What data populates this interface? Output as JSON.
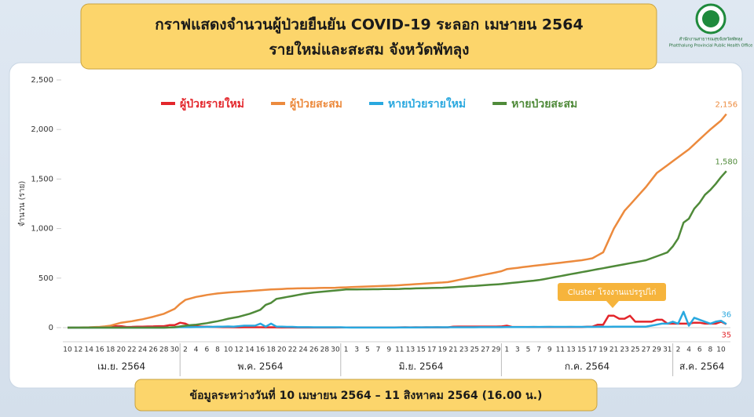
{
  "header": {
    "title_lines": [
      "กราฟแสดงจำนวนผู้ป่วยยืนยัน COVID-19 ระลอก เมษายน 2564",
      "รายใหม่และสะสม จังหวัดพัทลุง"
    ]
  },
  "logo": {
    "org_thai": "สำนักงานสาธารณสุขจังหวัดพัทลุง",
    "org_english": "Phatthalung Provincial Public Health Office"
  },
  "footer": "ข้อมูลระหว่างวันที่ 10 เมษายน 2564 – 11 สิงหาคม 2564 (16.00 น.)",
  "chart_data": {
    "type": "line",
    "y_label": "จำนวน (ราย)",
    "annotation": "Cluster โรงงานแปรรูปไก่",
    "ylim": [
      0,
      2500
    ],
    "yticks": [
      0,
      500,
      {
        "value": 1000,
        "label": "1,000"
      },
      {
        "value": 1500,
        "label": "1,500"
      },
      {
        "value": 2000,
        "label": "2,000"
      },
      {
        "value": 2500,
        "label": "2,500"
      }
    ],
    "grid": false,
    "legend": "top",
    "category_groups": [
      "เม.ย. 2564",
      "พ.ค. 2564",
      "มิ.ย. 2564",
      "ก.ค. 2564",
      "ส.ค. 2564"
    ],
    "categories": [
      "10",
      null,
      "12",
      null,
      "14",
      null,
      "16",
      null,
      "18",
      null,
      "20",
      null,
      "22",
      null,
      "24",
      null,
      "26",
      null,
      "28",
      null,
      "30",
      null,
      "2",
      null,
      "4",
      null,
      "6",
      null,
      "8",
      null,
      "10",
      null,
      "12",
      null,
      "14",
      null,
      "16",
      null,
      "18",
      null,
      "20",
      null,
      "22",
      null,
      "24",
      null,
      "26",
      null,
      "28",
      null,
      "30",
      null,
      "1",
      null,
      "3",
      null,
      "5",
      null,
      "7",
      null,
      "9",
      null,
      "11",
      null,
      "13",
      null,
      "15",
      null,
      "17",
      null,
      "19",
      null,
      "21",
      null,
      "23",
      null,
      "25",
      null,
      "27",
      null,
      "29",
      null,
      "1",
      null,
      "3",
      null,
      "5",
      null,
      "7",
      null,
      "9",
      null,
      "11",
      null,
      "13",
      null,
      "15",
      null,
      "17",
      null,
      "19",
      null,
      "21",
      null,
      "23",
      null,
      "25",
      null,
      "27",
      null,
      "29",
      null,
      "31",
      null,
      "2",
      null,
      "4",
      null,
      "6",
      null,
      "8",
      null,
      "10",
      null
    ],
    "series": [
      {
        "name": "ผู้ป่วยรายใหม่",
        "color": "#e3262b",
        "end_label": true,
        "values": [
          0,
          1,
          1,
          1,
          1,
          2,
          2,
          5,
          7,
          15,
          15,
          7,
          8,
          10,
          10,
          12,
          13,
          15,
          15,
          25,
          25,
          50,
          40,
          15,
          15,
          10,
          10,
          8,
          7,
          5,
          5,
          4,
          3,
          4,
          4,
          4,
          4,
          3,
          4,
          3,
          2,
          3,
          2,
          1,
          1,
          1,
          1,
          1,
          1,
          1,
          1,
          2,
          2,
          2,
          2,
          2,
          2,
          2,
          2,
          2,
          2,
          2,
          3,
          4,
          3,
          4,
          3,
          4,
          3,
          4,
          3,
          3,
          10,
          11,
          11,
          11,
          11,
          11,
          11,
          11,
          11,
          12,
          20,
          7,
          7,
          7,
          6,
          7,
          6,
          6,
          7,
          6,
          6,
          6,
          7,
          6,
          6,
          10,
          10,
          30,
          30,
          120,
          120,
          90,
          90,
          120,
          60,
          60,
          60,
          60,
          80,
          80,
          40,
          40,
          40,
          40,
          40,
          50,
          50,
          40,
          40,
          40,
          60,
          35
        ]
      },
      {
        "name": "ผู้ป่วยสะสม",
        "color": "#ec8a3d",
        "end_label": true,
        "values": [
          0,
          1,
          2,
          3,
          4,
          6,
          8,
          13,
          20,
          35,
          50,
          57,
          65,
          75,
          85,
          97,
          110,
          125,
          140,
          165,
          190,
          240,
          280,
          295,
          310,
          320,
          330,
          338,
          345,
          350,
          355,
          359,
          362,
          366,
          370,
          374,
          378,
          381,
          385,
          388,
          390,
          393,
          395,
          396,
          397,
          398,
          399,
          400,
          401,
          402,
          403,
          405,
          407,
          409,
          411,
          413,
          415,
          417,
          419,
          421,
          423,
          425,
          428,
          432,
          435,
          439,
          442,
          446,
          449,
          453,
          456,
          460,
          470,
          481,
          492,
          503,
          514,
          525,
          536,
          547,
          558,
          570,
          590,
          597,
          604,
          611,
          617,
          624,
          630,
          636,
          643,
          649,
          655,
          661,
          668,
          674,
          680,
          690,
          700,
          730,
          760,
          880,
          1000,
          1090,
          1180,
          1240,
          1300,
          1360,
          1420,
          1490,
          1560,
          1600,
          1640,
          1680,
          1720,
          1760,
          1800,
          1850,
          1900,
          1950,
          2000,
          2045,
          2090,
          2156
        ],
        "value_labels": [
          null,
          null,
          null,
          null,
          null,
          null,
          null,
          null,
          null,
          null,
          null,
          null,
          null,
          null,
          null,
          null,
          null,
          null,
          null,
          null,
          null,
          null,
          null,
          null,
          null,
          null,
          null,
          null,
          null,
          null,
          null,
          null,
          null,
          null,
          null,
          null,
          null,
          null,
          null,
          null,
          null,
          null,
          null,
          null,
          null,
          null,
          null,
          null,
          null,
          null,
          null,
          null,
          null,
          null,
          null,
          null,
          null,
          null,
          null,
          null,
          null,
          null,
          null,
          null,
          null,
          null,
          null,
          null,
          null,
          null,
          null,
          null,
          null,
          null,
          null,
          null,
          null,
          null,
          null,
          null,
          null,
          null,
          null,
          null,
          null,
          null,
          null,
          null,
          null,
          null,
          null,
          null,
          null,
          null,
          null,
          null,
          null,
          null,
          null,
          null,
          null,
          null,
          null,
          null,
          null,
          null,
          null,
          null,
          null,
          null,
          null,
          null,
          null,
          null,
          null,
          null,
          null,
          null,
          null,
          null,
          null,
          null,
          null,
          "2,156"
        ]
      },
      {
        "name": "หายป่วยรายใหม่",
        "color": "#29a8df",
        "end_label": true,
        "values": [
          0,
          0,
          0,
          0,
          0,
          0,
          0,
          0,
          0,
          0,
          0,
          0,
          0,
          0,
          0,
          0,
          0,
          0,
          0,
          2,
          3,
          5,
          5,
          5,
          6,
          6,
          8,
          8,
          10,
          10,
          12,
          10,
          15,
          20,
          20,
          20,
          40,
          10,
          40,
          10,
          10,
          8,
          8,
          5,
          5,
          5,
          4,
          4,
          4,
          4,
          4,
          4,
          2,
          1,
          1,
          1,
          1,
          1,
          1,
          1,
          1,
          1,
          2,
          2,
          2,
          2,
          3,
          3,
          4,
          4,
          4,
          4,
          4,
          4,
          4,
          4,
          4,
          5,
          5,
          5,
          5,
          5,
          6,
          6,
          6,
          6,
          7,
          7,
          7,
          8,
          8,
          8,
          8,
          8,
          8,
          8,
          8,
          8,
          8,
          9,
          9,
          9,
          10,
          10,
          10,
          10,
          10,
          10,
          10,
          20,
          30,
          40,
          40,
          60,
          40,
          160,
          20,
          100,
          80,
          60,
          40,
          60,
          70,
          36
        ]
      },
      {
        "name": "หายป่วยสะสม",
        "color": "#4f8a39",
        "end_label": true,
        "values": [
          0,
          0,
          0,
          0,
          0,
          0,
          0,
          0,
          0,
          0,
          0,
          0,
          0,
          0,
          0,
          0,
          0,
          0,
          0,
          2,
          5,
          12,
          20,
          25,
          30,
          37,
          45,
          55,
          65,
          77,
          90,
          100,
          110,
          125,
          140,
          160,
          180,
          230,
          250,
          290,
          300,
          310,
          320,
          330,
          340,
          348,
          355,
          360,
          365,
          370,
          375,
          380,
          385,
          386,
          386,
          387,
          387,
          388,
          388,
          389,
          389,
          390,
          391,
          393,
          394,
          396,
          397,
          399,
          400,
          402,
          403,
          405,
          408,
          412,
          415,
          419,
          422,
          426,
          429,
          433,
          436,
          440,
          446,
          452,
          457,
          463,
          469,
          474,
          480,
          490,
          500,
          510,
          520,
          530,
          540,
          550,
          560,
          570,
          580,
          590,
          600,
          610,
          620,
          630,
          640,
          650,
          660,
          670,
          680,
          700,
          720,
          740,
          760,
          820,
          900,
          1060,
          1100,
          1200,
          1260,
          1340,
          1390,
          1450,
          1520,
          1580
        ],
        "value_labels": [
          null,
          null,
          null,
          null,
          null,
          null,
          null,
          null,
          null,
          null,
          null,
          null,
          null,
          null,
          null,
          null,
          null,
          null,
          null,
          null,
          null,
          null,
          null,
          null,
          null,
          null,
          null,
          null,
          null,
          null,
          null,
          null,
          null,
          null,
          null,
          null,
          null,
          null,
          null,
          null,
          null,
          null,
          null,
          null,
          null,
          null,
          null,
          null,
          null,
          null,
          null,
          null,
          null,
          null,
          null,
          null,
          null,
          null,
          null,
          null,
          null,
          null,
          null,
          null,
          null,
          null,
          null,
          null,
          null,
          null,
          null,
          null,
          null,
          null,
          null,
          null,
          null,
          null,
          null,
          null,
          null,
          null,
          null,
          null,
          null,
          null,
          null,
          null,
          null,
          null,
          null,
          null,
          null,
          null,
          null,
          null,
          null,
          null,
          null,
          null,
          null,
          null,
          null,
          null,
          null,
          null,
          null,
          null,
          null,
          null,
          null,
          null,
          null,
          null,
          null,
          null,
          null,
          null,
          null,
          null,
          null,
          null,
          null,
          "1,580"
        ]
      }
    ]
  }
}
